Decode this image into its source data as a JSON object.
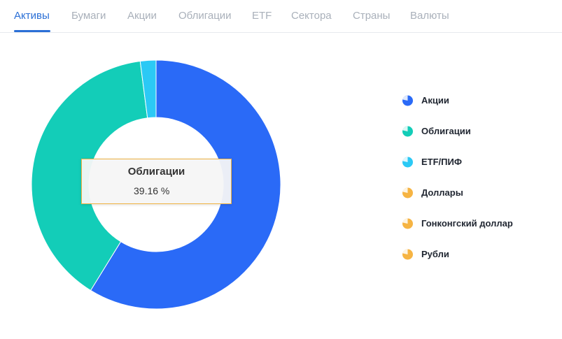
{
  "tabs": [
    {
      "label": "Активы",
      "active": true
    },
    {
      "label": "Бумаги",
      "active": false
    },
    {
      "label": "Акции",
      "active": false
    },
    {
      "label": "Облигации",
      "active": false
    },
    {
      "label": "ETF",
      "active": false
    },
    {
      "label": "Сектора",
      "active": false
    },
    {
      "label": "Страны",
      "active": false
    },
    {
      "label": "Валюты",
      "active": false
    }
  ],
  "tooltip": {
    "title": "Облигации",
    "value": "39.16 %"
  },
  "colors": {
    "accent": "#2a6fd6",
    "tab_inactive": "#a9b0ba",
    "tooltip_border": "#f0b341"
  },
  "chart_data": {
    "type": "pie",
    "style": "donut",
    "title": "",
    "legend_position": "right",
    "series": [
      {
        "name": "Акции",
        "value": 58.8,
        "color": "#2a6af7",
        "icon": "pie-icon"
      },
      {
        "name": "Облигации",
        "value": 39.16,
        "color": "#13cdb8",
        "icon": "pie-icon"
      },
      {
        "name": "ETF/ПИФ",
        "value": 2.04,
        "color": "#2bc9f5",
        "icon": "pie-icon"
      },
      {
        "name": "Доллары",
        "value": 0,
        "color": "#f6b443",
        "icon": "pie-icon"
      },
      {
        "name": "Гонконгский доллар",
        "value": 0,
        "color": "#f6b443",
        "icon": "pie-icon"
      },
      {
        "name": "Рубли",
        "value": 0,
        "color": "#f6b443",
        "icon": "pie-icon"
      }
    ]
  }
}
